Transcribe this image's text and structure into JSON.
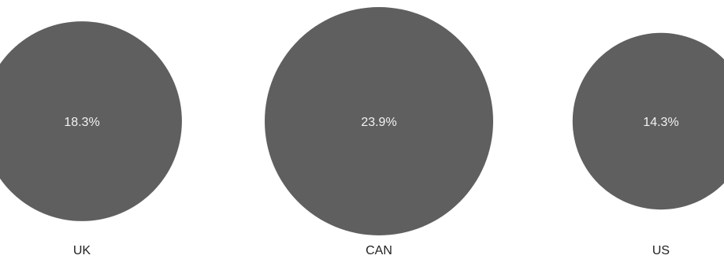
{
  "chart_data": {
    "type": "bubble",
    "title": "",
    "categories": [
      "UK",
      "CAN",
      "US"
    ],
    "values": [
      18.3,
      23.9,
      14.3
    ],
    "value_labels": [
      "18.3%",
      "23.9%",
      "14.3%"
    ],
    "unit": "%",
    "legend": "none",
    "grid": false,
    "colors": {
      "bubble": "#5f5f5f",
      "value_text": "#f2f2f2",
      "category_text": "#222222",
      "background": "#ffffff"
    }
  }
}
